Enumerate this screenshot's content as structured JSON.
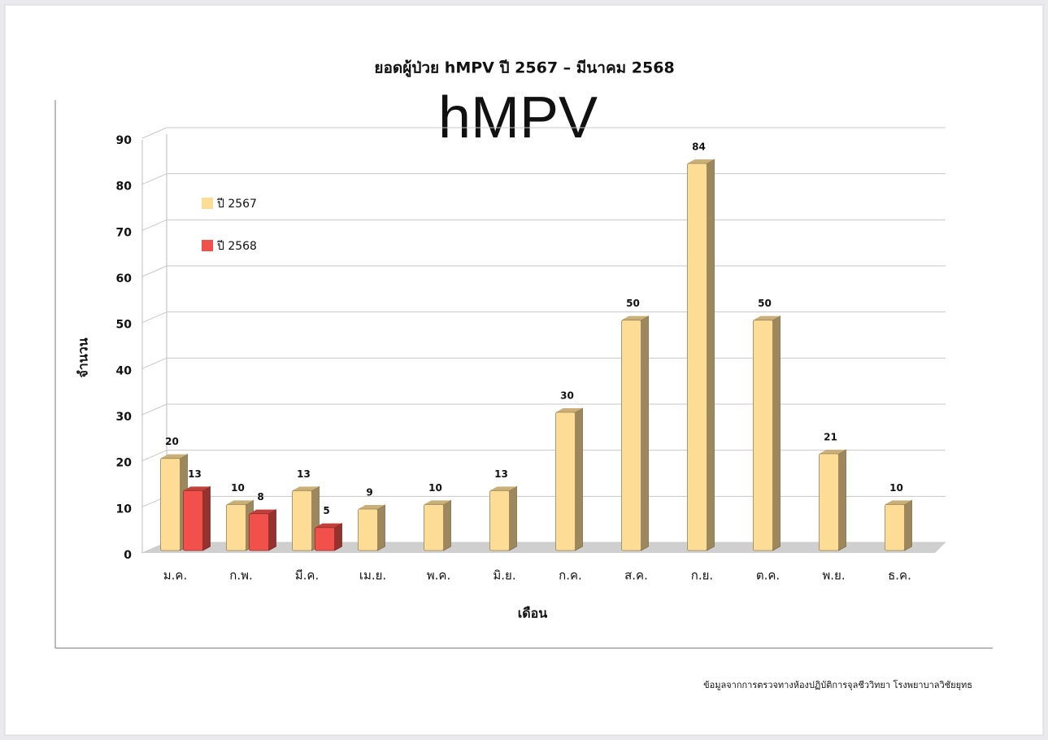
{
  "chart_data": {
    "type": "bar",
    "title": "ยอดผู้ป่วย hMPV ปี 2567 – มีนาคม 2568",
    "annotation": "hMPV",
    "x_label": "เดือน",
    "y_label": "จำนวน",
    "source": "ข้อมูลจากการตรวจทางห้องปฏิบัติการจุลชีววิทยา โรงพยาบาลวิชัยยุทธ",
    "categories": [
      "ม.ค.",
      "ก.พ.",
      "มี.ค.",
      "เม.ย.",
      "พ.ค.",
      "มิ.ย.",
      "ก.ค.",
      "ส.ค.",
      "ก.ย.",
      "ต.ค.",
      "พ.ย.",
      "ธ.ค."
    ],
    "series": [
      {
        "name": "ปี 2567",
        "color": "#fddc96",
        "values": [
          20,
          10,
          13,
          9,
          10,
          13,
          30,
          50,
          84,
          50,
          21,
          10
        ]
      },
      {
        "name": "ปี 2568",
        "color": "#f2504a",
        "values": [
          13,
          8,
          5,
          null,
          null,
          null,
          null,
          null,
          null,
          null,
          null,
          null
        ]
      }
    ],
    "ylim": [
      0,
      90
    ],
    "yticks": [
      0,
      10,
      20,
      30,
      40,
      50,
      60,
      70,
      80,
      90
    ],
    "grid": true,
    "legend": "upper left"
  }
}
